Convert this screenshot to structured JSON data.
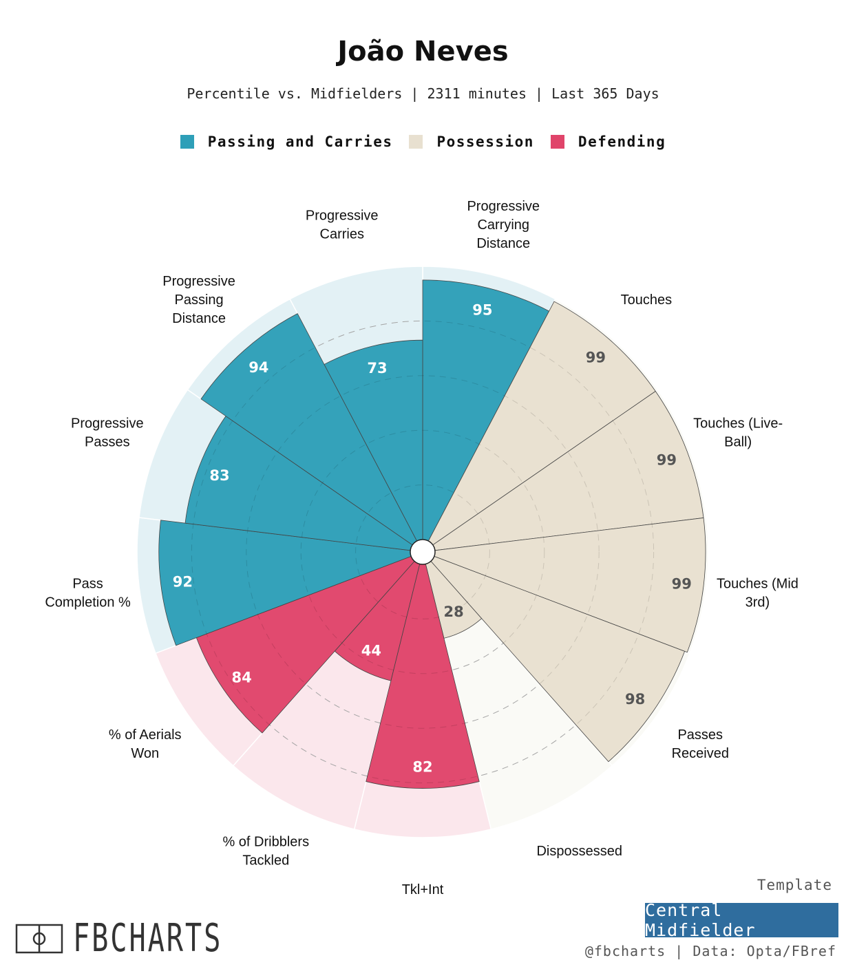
{
  "header": {
    "title": "João Neves",
    "subtitle": "Percentile vs. Midfielders | 2311 minutes | Last 365 Days"
  },
  "legend": [
    {
      "label": "Passing and Carries",
      "color": "#2e9fb8"
    },
    {
      "label": "Possession",
      "color": "#e8e0d0"
    },
    {
      "label": "Defending",
      "color": "#e0446a"
    }
  ],
  "chart_data": {
    "type": "polar-bar",
    "range": [
      0,
      100
    ],
    "gridlines": [
      20,
      40,
      60,
      80
    ],
    "categories": [
      {
        "label": "Progressive\nCarrying\nDistance",
        "value": 95,
        "group": "Passing and Carries"
      },
      {
        "label": "Touches",
        "value": 99,
        "group": "Possession"
      },
      {
        "label": "Touches (Live-\nBall)",
        "value": 99,
        "group": "Possession"
      },
      {
        "label": "Touches (Mid\n3rd)",
        "value": 99,
        "group": "Possession"
      },
      {
        "label": "Passes\nReceived",
        "value": 98,
        "group": "Possession"
      },
      {
        "label": "Dispossessed",
        "value": 28,
        "group": "Possession"
      },
      {
        "label": "Tkl+Int",
        "value": 82,
        "group": "Defending"
      },
      {
        "label": "% of Dribblers\nTackled",
        "value": 44,
        "group": "Defending"
      },
      {
        "label": "% of Aerials\nWon",
        "value": 84,
        "group": "Defending"
      },
      {
        "label": "Pass\nCompletion %",
        "value": 92,
        "group": "Passing and Carries"
      },
      {
        "label": "Progressive\nPasses",
        "value": 83,
        "group": "Passing and Carries"
      },
      {
        "label": "Progressive\nPassing\nDistance",
        "value": 94,
        "group": "Passing and Carries"
      },
      {
        "label": "Progressive\nCarries",
        "value": 73,
        "group": "Passing and Carries"
      }
    ],
    "group_colors": {
      "Passing and Carries": {
        "fill": "#2e9fb8",
        "bg": "#e3f1f5",
        "text": "#ffffff"
      },
      "Possession": {
        "fill": "#e8e0d0",
        "bg": "#fafaf6",
        "text": "#555555"
      },
      "Defending": {
        "fill": "#e0446a",
        "bg": "#fbe7ec",
        "text": "#ffffff"
      }
    }
  },
  "footer": {
    "logo": "FBCHARTS",
    "template_label": "Template",
    "template_value": "Central Midfielder",
    "credit": "@fbcharts | Data: Opta/FBref"
  }
}
